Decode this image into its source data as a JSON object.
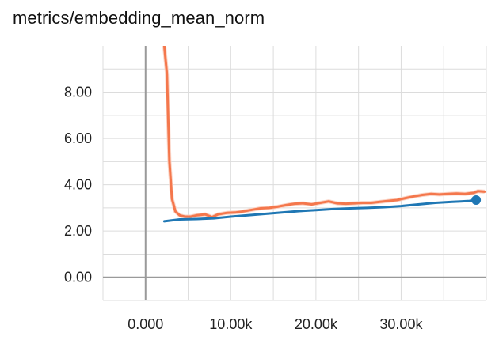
{
  "chart_data": {
    "type": "line",
    "title": "metrics/embedding_mean_norm",
    "xlabel": "",
    "ylabel": "",
    "xlim": [
      -5000,
      40000
    ],
    "ylim": [
      -1.0,
      10.0
    ],
    "x_ticks": [
      0,
      10000,
      20000,
      30000
    ],
    "x_tick_labels": [
      "0.000",
      "10.00k",
      "20.00k",
      "30.00k"
    ],
    "y_ticks": [
      0,
      2,
      4,
      6,
      8
    ],
    "y_tick_labels": [
      "0.00",
      "2.00",
      "4.00",
      "6.00",
      "8.00"
    ],
    "grid": true,
    "legend": "none",
    "colors": {
      "orange": "#f4774c",
      "orange_raw": "#fbd5c7",
      "blue": "#1f77b4",
      "axis": "#9a9a9a",
      "grid": "#dcdcdc"
    },
    "series": [
      {
        "color": "#f4774c",
        "raw_color": "#fbd5c7",
        "x": [
          2200,
          2500,
          2800,
          3100,
          3500,
          4000,
          4600,
          5300,
          6000,
          7000,
          7800,
          8500,
          9500,
          10500,
          11500,
          12500,
          13500,
          14500,
          15500,
          16500,
          17500,
          18500,
          19500,
          20500,
          21500,
          22500,
          23500,
          24500,
          25500,
          26500,
          27500,
          28500,
          29500,
          30500,
          31500,
          32500,
          33500,
          34500,
          35500,
          36500,
          37500,
          38500,
          39000,
          39800
        ],
        "y": [
          10.0,
          8.8,
          5.0,
          3.4,
          2.85,
          2.68,
          2.62,
          2.62,
          2.68,
          2.72,
          2.6,
          2.72,
          2.78,
          2.8,
          2.85,
          2.92,
          2.98,
          3.0,
          3.05,
          3.12,
          3.18,
          3.2,
          3.15,
          3.22,
          3.28,
          3.2,
          3.18,
          3.2,
          3.22,
          3.22,
          3.26,
          3.3,
          3.34,
          3.42,
          3.5,
          3.56,
          3.6,
          3.58,
          3.6,
          3.62,
          3.6,
          3.65,
          3.72,
          3.7
        ]
      },
      {
        "color": "#1f77b4",
        "x": [
          2200,
          4000,
          6000,
          8000,
          10000,
          12000,
          14000,
          16000,
          18000,
          20000,
          22000,
          24000,
          26000,
          28000,
          30000,
          32000,
          34000,
          36000,
          37000,
          38000,
          38800
        ],
        "y": [
          2.42,
          2.5,
          2.52,
          2.55,
          2.62,
          2.68,
          2.74,
          2.8,
          2.86,
          2.9,
          2.95,
          2.98,
          3.0,
          3.03,
          3.08,
          3.15,
          3.22,
          3.26,
          3.28,
          3.3,
          3.34
        ]
      }
    ]
  }
}
